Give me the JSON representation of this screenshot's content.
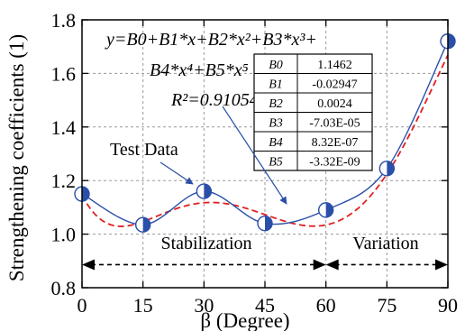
{
  "chart_data": {
    "type": "scatter",
    "xlabel": "β (Degree)",
    "ylabel": "Strengthening coefficients (1)",
    "xlim": [
      0,
      90
    ],
    "ylim": [
      0.8,
      1.8
    ],
    "x_ticks": [
      "0",
      "15",
      "30",
      "45",
      "60",
      "75",
      "90"
    ],
    "y_ticks": [
      "0.8",
      "1.0",
      "1.2",
      "1.4",
      "1.6",
      "1.8"
    ],
    "grid": true,
    "series": [
      {
        "name": "Test Data",
        "style": "half-filled circle markers, smooth solid blue curve",
        "color": "#2a4fa8",
        "x": [
          0,
          15,
          30,
          45,
          60,
          75,
          90
        ],
        "y": [
          1.15,
          1.035,
          1.16,
          1.04,
          1.09,
          1.245,
          1.72
        ]
      },
      {
        "style": "dashed red polynomial fit",
        "color": "#e02020",
        "coefficients": [
          1.1462,
          -0.02947,
          0.0024,
          -7.03e-05,
          8.32e-07,
          -3.32e-09
        ]
      }
    ],
    "annotations": {
      "equation_line1": "y=B0+B1*x+B2*x²+B3*x³+",
      "equation_line2": "B4*x⁴+B5*x⁵",
      "r_squared": "R²=0.91054",
      "test_data_label": "Test Data",
      "stabilization_label": "Stabilization",
      "variation_label": "Variation"
    },
    "table": {
      "rows": [
        {
          "name": "B0",
          "value": "1.1462"
        },
        {
          "name": "B1",
          "value": "-0.02947"
        },
        {
          "name": "B2",
          "value": "0.0024"
        },
        {
          "name": "B3",
          "value": "-7.03E-05"
        },
        {
          "name": "B4",
          "value": "8.32E-07"
        },
        {
          "name": "B5",
          "value": "-3.32E-09"
        }
      ]
    }
  }
}
